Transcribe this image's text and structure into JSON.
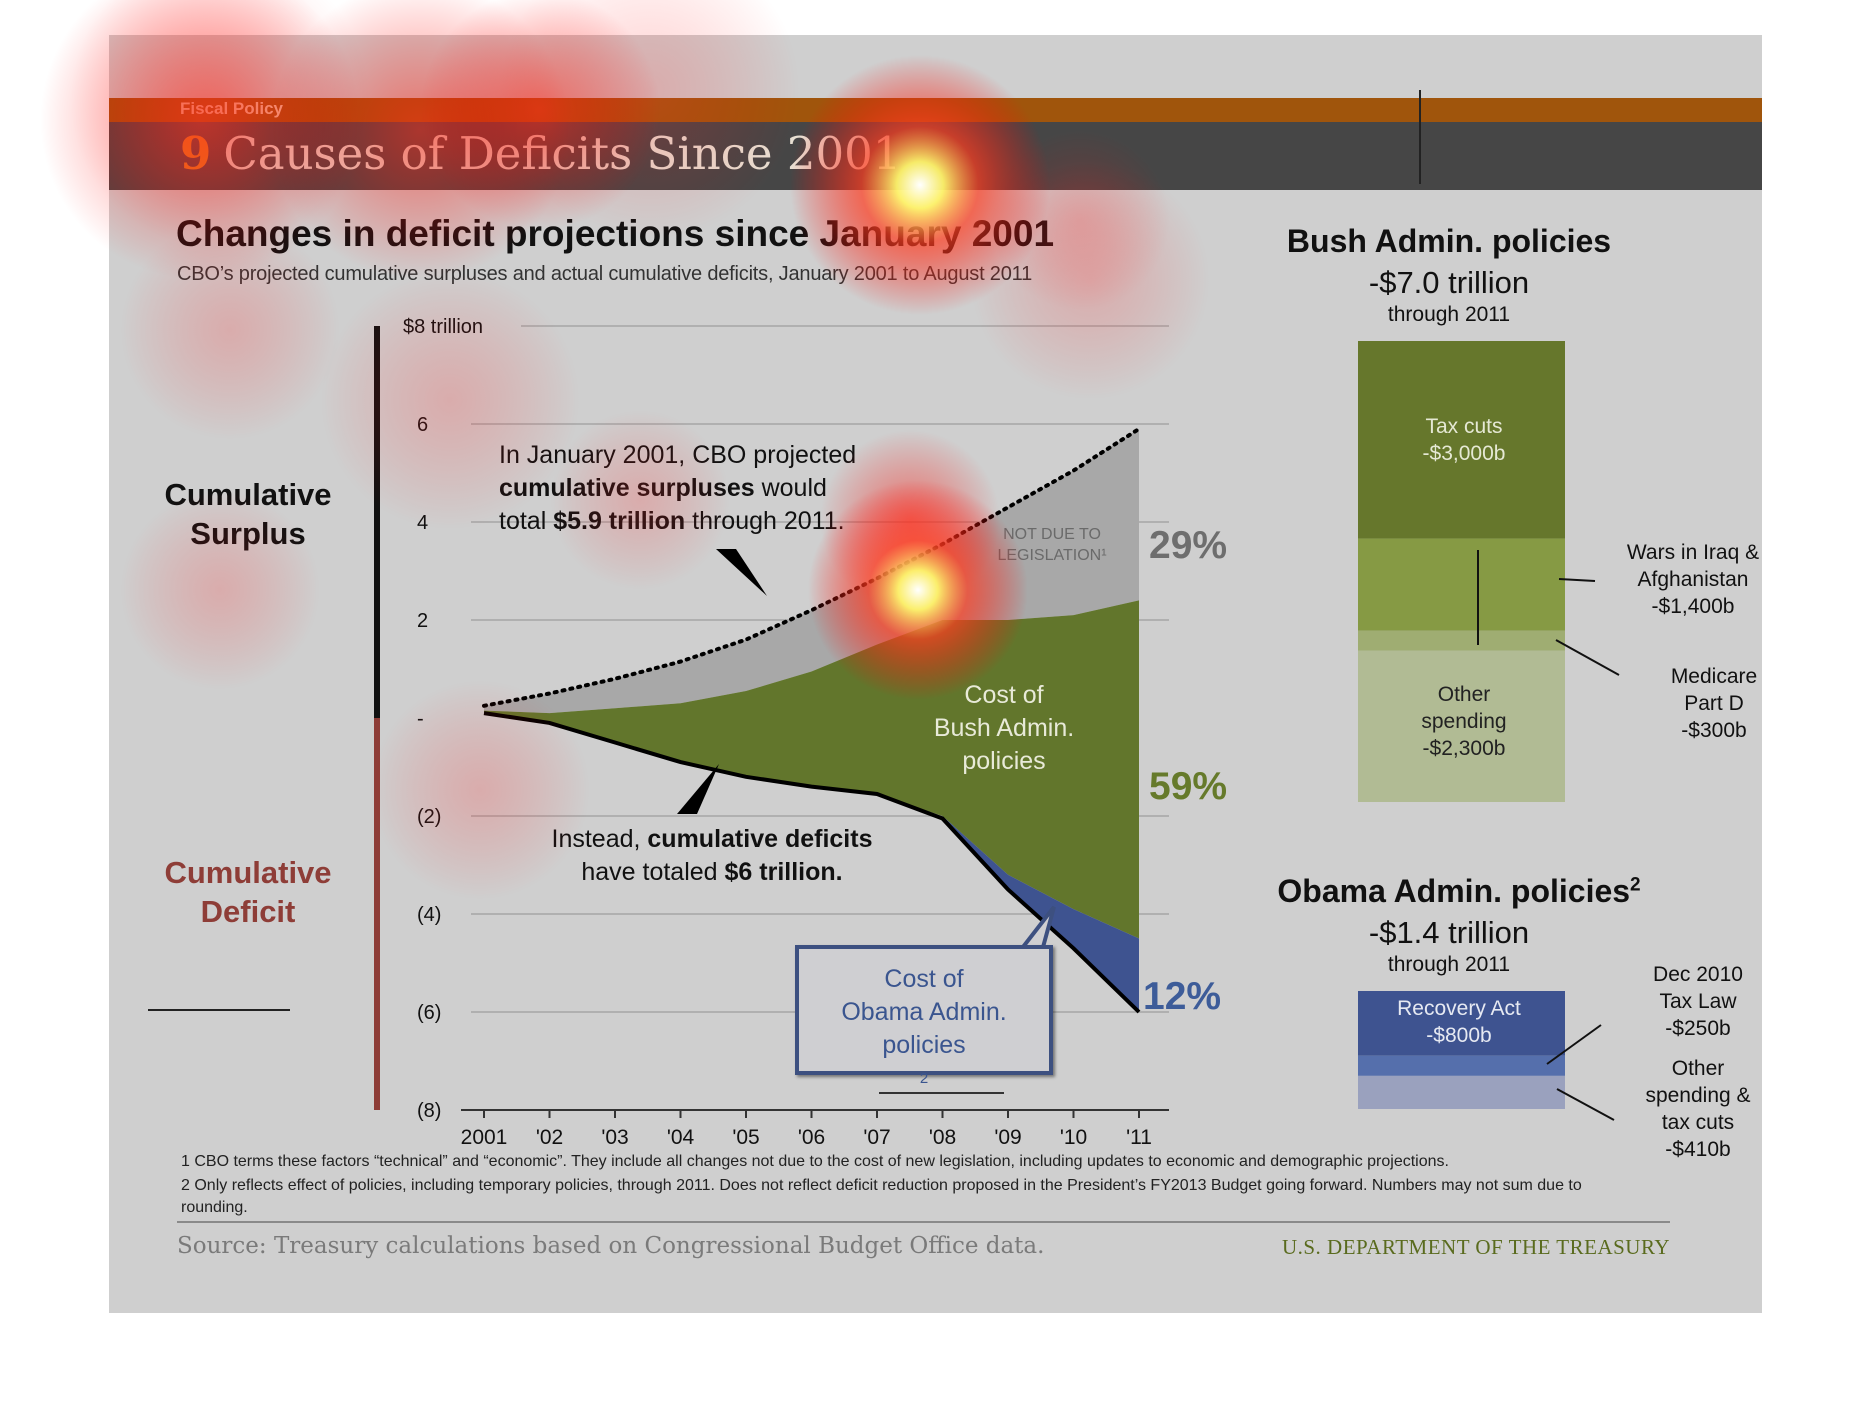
{
  "header": {
    "kicker": "Fiscal Policy",
    "title_number": "9",
    "title_text": "Causes of Deficits Since 2001"
  },
  "chart_data": [
    {
      "type": "area",
      "title": "Changes in deficit projections since January 2001",
      "subtitle": "CBO’s projected cumulative surpluses and actual cumulative deficits, January 2001 to August 2011",
      "categories": [
        "2001",
        "'02",
        "'03",
        "'04",
        "'05",
        "'06",
        "'07",
        "'08",
        "'09",
        "'10",
        "'11"
      ],
      "ylim": [
        -8,
        8
      ],
      "yticks": [
        {
          "value": 8,
          "label": "$8 trillion"
        },
        {
          "value": 6,
          "label": "6"
        },
        {
          "value": 4,
          "label": "4"
        },
        {
          "value": 2,
          "label": "2"
        },
        {
          "value": 0,
          "label": "-"
        },
        {
          "value": -2,
          "label": "(2)"
        },
        {
          "value": -4,
          "label": "(4)"
        },
        {
          "value": -6,
          "label": "(6)"
        },
        {
          "value": -8,
          "label": "(8)"
        }
      ],
      "ylabel_top": "Cumulative Surplus",
      "ylabel_bottom": "Cumulative Deficit",
      "series": [
        {
          "key": "projected_surplus",
          "style": "dotted",
          "values": [
            0.25,
            0.5,
            0.8,
            1.15,
            1.6,
            2.2,
            2.85,
            3.55,
            4.3,
            5.05,
            5.9
          ]
        },
        {
          "key": "legislative_path",
          "values": [
            0.15,
            0.1,
            0.2,
            0.3,
            0.55,
            0.95,
            1.5,
            2.0,
            2.0,
            2.1,
            2.4
          ]
        },
        {
          "key": "actual_cumulative",
          "values": [
            0.1,
            -0.1,
            -0.5,
            -0.9,
            -1.2,
            -1.4,
            -1.55,
            -2.05,
            -3.5,
            -4.7,
            -6.0
          ]
        },
        {
          "key": "excluding_obama",
          "values": [
            0.1,
            -0.1,
            -0.5,
            -0.9,
            -1.2,
            -1.4,
            -1.55,
            -2.0,
            -3.2,
            -3.9,
            -4.5
          ]
        }
      ],
      "percent_labels": {
        "not_due_to_legislation": "29%",
        "bush": "59%",
        "obama": "12%"
      },
      "region_labels": {
        "not_due_line1": "NOT DUE TO",
        "not_due_line2": "LEGISLATION¹",
        "bush_line1": "Cost of",
        "bush_line2": "Bush Admin.",
        "bush_line3": "policies",
        "obama_line1": "Cost of",
        "obama_line2": "Obama Admin.",
        "obama_line3": "policies",
        "obama_sup": "2"
      },
      "annotations": {
        "surplus": {
          "l1_pre": "In January 2001, CBO projected",
          "l2_bold": "cumulative surpluses",
          "l2_post": " would",
          "l3_pre": "total ",
          "l3_bold": "$5.9 trillion",
          "l3_post": " through 2011."
        },
        "deficit": {
          "l1_pre": "Instead, ",
          "l1_bold": "cumulative deficits",
          "l2_pre": "have totaled ",
          "l2_bold": "$6 trillion."
        }
      },
      "colors": {
        "not_due": "#a8a8a8",
        "bush": "#62762c",
        "obama": "#3e5390",
        "surplus_axis": "#111111",
        "deficit_axis": "#8e3d37"
      }
    },
    {
      "type": "bar",
      "title": "Bush Admin. policies",
      "total": "-$7.0 trillion",
      "through": "through 2011",
      "segments": [
        {
          "label": "Tax cuts",
          "value_label": "-$3,000b",
          "value": -3000,
          "color": "#66772c"
        },
        {
          "label": "Wars in Iraq & Afghanistan",
          "value_label": "-$1,400b",
          "value": -1400,
          "color": "#869a44"
        },
        {
          "label": "Medicare Part D",
          "value_label": "-$300b",
          "value": -300,
          "color": "#9fad72"
        },
        {
          "label": "Other spending",
          "value_label": "-$2,300b",
          "value": -2300,
          "color": "#b1bb94"
        }
      ],
      "notes": {
        "wars_l1": "Wars in Iraq  &",
        "wars_l2": "Afghanistan",
        "wars_l3": "-$1,400b",
        "medicare_l1": "Medicare",
        "medicare_l2": "Part D",
        "medicare_l3": "-$300b",
        "taxcuts_l1": "Tax cuts",
        "taxcuts_l2": "-$3,000b",
        "other_l1": "Other",
        "other_l2": "spending",
        "other_l3": "-$2,300b"
      }
    },
    {
      "type": "bar",
      "title": "Obama Admin. policies",
      "title_sup": "2",
      "total": "-$1.4 trillion",
      "through": "through 2011",
      "segments": [
        {
          "label": "Recovery Act",
          "value_label": "-$800b",
          "value": -800,
          "color": "#3e5390"
        },
        {
          "label": "Dec 2010 Tax Law",
          "value_label": "-$250b",
          "value": -250,
          "color": "#556fac"
        },
        {
          "label": "Other spending & tax cuts",
          "value_label": "-$410b",
          "value": -410,
          "color": "#9aa1be"
        }
      ],
      "notes": {
        "recovery_l1": "Recovery Act",
        "recovery_l2": "-$800b",
        "dec_l1": "Dec 2010",
        "dec_l2": "Tax Law",
        "dec_l3": "-$250b",
        "other_l1": "Other",
        "other_l2": "spending &",
        "other_l3": "tax cuts",
        "other_l4": "-$410b"
      }
    }
  ],
  "footnotes": {
    "note1": "1 CBO terms these factors “technical” and “economic”. They include all changes not due to the cost of new legislation, including updates to economic and demographic projections.",
    "note2": "2 Only reflects effect of policies, including temporary policies, through 2011. Does not reflect deficit reduction proposed in the President’s FY2013 Budget going forward. Numbers may not sum due to rounding."
  },
  "footer": {
    "source": "Source: Treasury calculations based on Congressional Budget Office data.",
    "agency": "U.S. DEPARTMENT OF THE TREASURY"
  }
}
